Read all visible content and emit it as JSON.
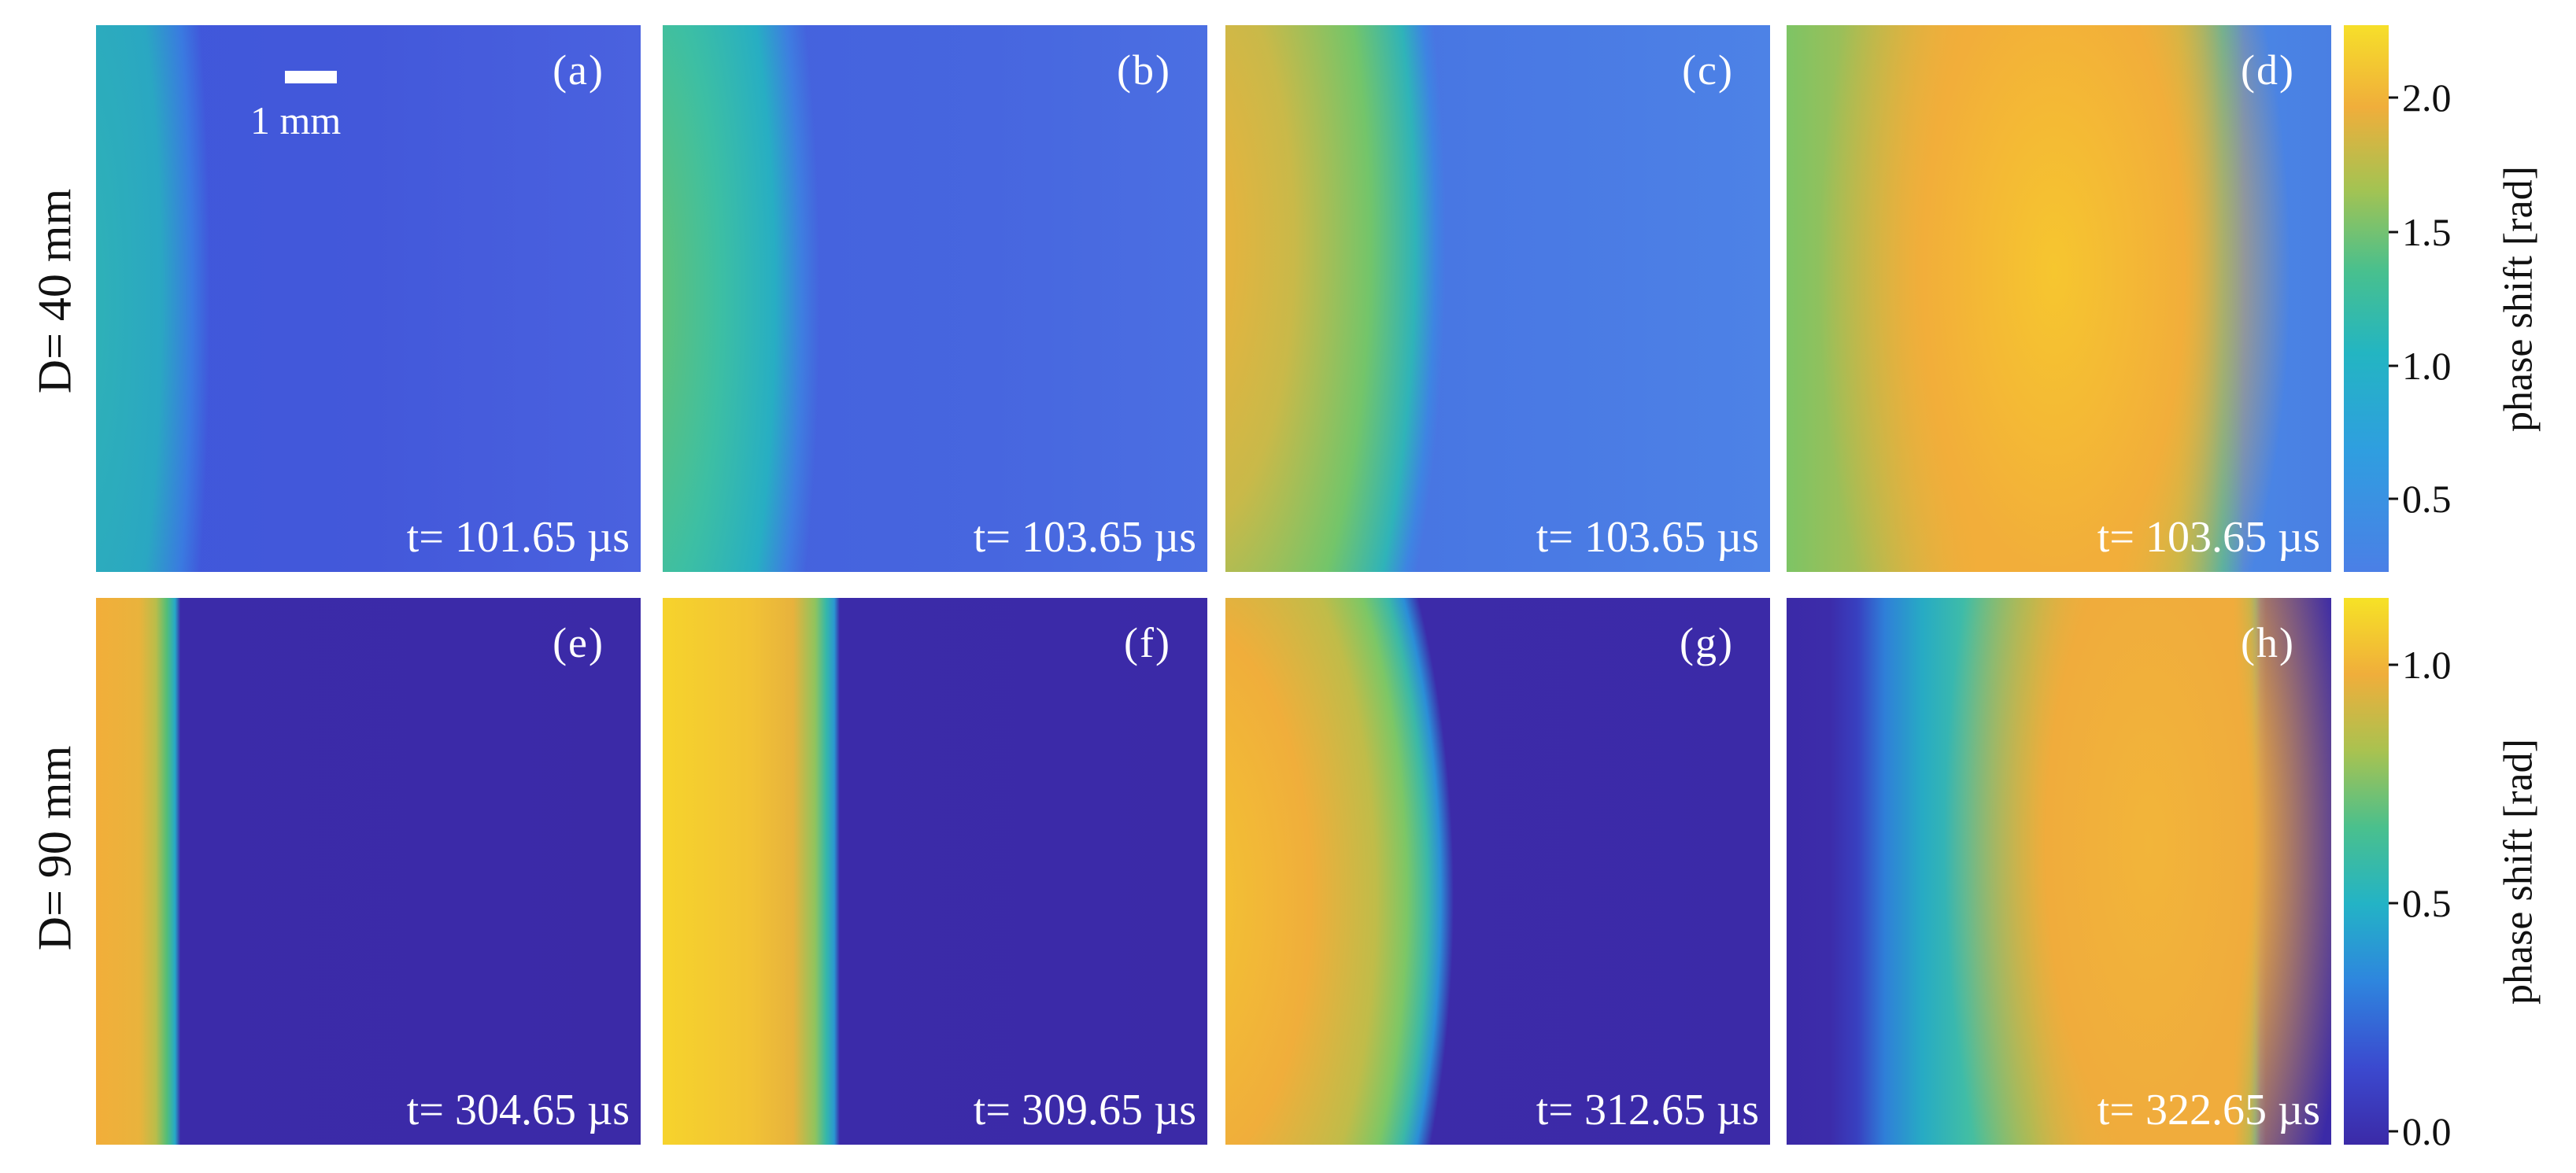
{
  "rows": [
    {
      "label": "D= 40 mm"
    },
    {
      "label": "D= 90 mm"
    }
  ],
  "scalebar": {
    "label": "1 mm"
  },
  "panels": [
    {
      "label": "(a)",
      "time": "t= 101.65 µs"
    },
    {
      "label": "(b)",
      "time": "t= 103.65 µs"
    },
    {
      "label": "(c)",
      "time": "t= 103.65 µs"
    },
    {
      "label": "(d)",
      "time": "t= 103.65 µs"
    },
    {
      "label": "(e)",
      "time": "t= 304.65 µs"
    },
    {
      "label": "(f)",
      "time": "t= 309.65 µs"
    },
    {
      "label": "(g)",
      "time": "t= 312.65 µs"
    },
    {
      "label": "(h)",
      "time": "t= 322.65 µs"
    }
  ],
  "colorbars": [
    {
      "label": "phase shift [rad]",
      "ticks": [
        "2.0",
        "1.5",
        "1.0",
        "0.5"
      ]
    },
    {
      "label": "phase shift [rad]",
      "ticks": [
        "1.0",
        "0.5",
        "0.0"
      ]
    }
  ],
  "colors": {
    "deep_blue": "#3a2aa8",
    "blue": "#4a6ae0",
    "cyan": "#20b3c4",
    "green": "#6cc36a",
    "orange": "#f2ad3a",
    "yellow": "#f6e326"
  }
}
